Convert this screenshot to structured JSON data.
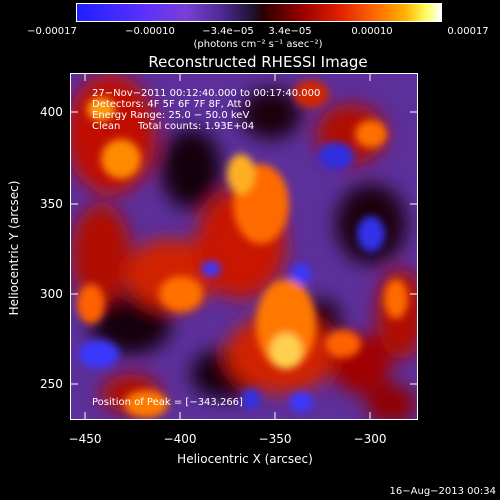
{
  "colorbar": {
    "ticks": [
      "−0.00017",
      "−0.00010",
      "−3.4e−05",
      "3.4e−05",
      "0.00010",
      "0.00017"
    ],
    "unit": "(photons cm⁻² s⁻¹ asec⁻²)"
  },
  "title": "Reconstructed RHESSI Image",
  "info": {
    "time_range": "27−Nov−2011 00:12:40.000 to 00:17:40.000",
    "detectors": "Detectors: 4F 5F 6F 7F 8F, Att 0",
    "energy": "Energy Range: 25.0 − 50.0 keV",
    "algorithm": "Clean",
    "counts": "Total counts: 1.93E+04",
    "peak": "Position of Peak = [−343,266]"
  },
  "axes": {
    "xlabel": "Heliocentric X (arcsec)",
    "ylabel": "Heliocentric Y (arcsec)",
    "xticks": [
      "−450",
      "−400",
      "−350",
      "−300"
    ],
    "yticks": [
      "400",
      "350",
      "300",
      "250"
    ]
  },
  "footer": "16−Aug−2013 00:34",
  "colors": {
    "background": "#000000",
    "text": "#ffffff"
  }
}
